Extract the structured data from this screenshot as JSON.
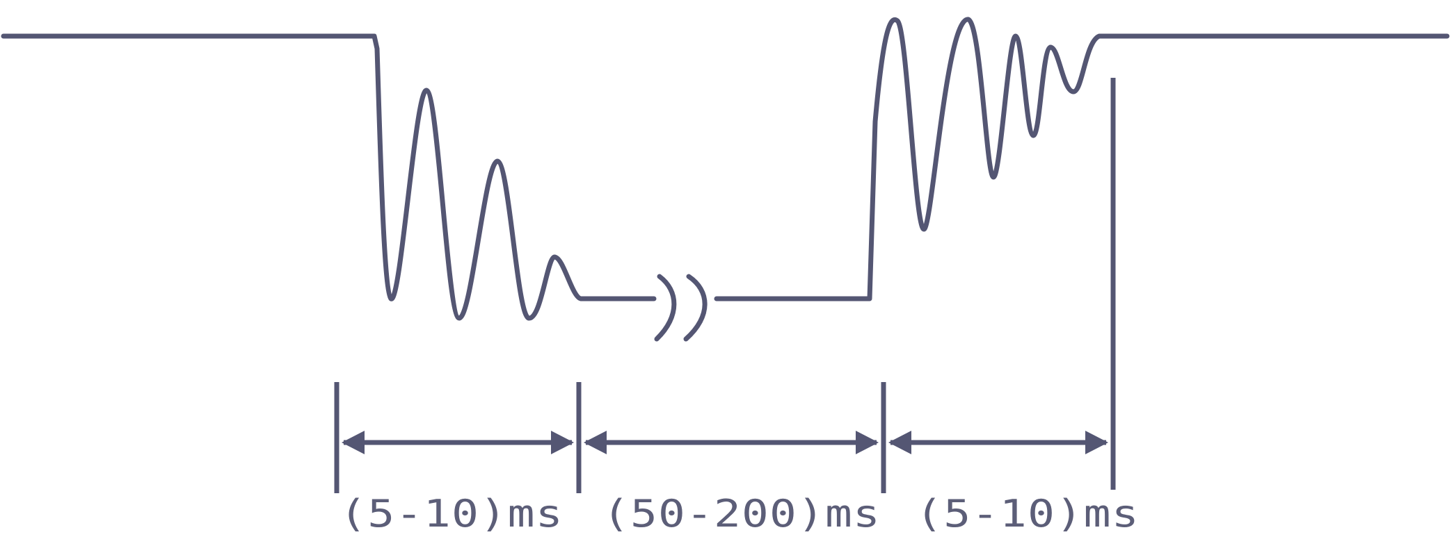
{
  "diagram": {
    "colors": {
      "stroke": "#545673",
      "label": "#5c5e78",
      "background": "#ffffff"
    },
    "segments": [
      {
        "label": "(5-10)ms"
      },
      {
        "label": "(50-200)ms"
      },
      {
        "label": "(5-10)ms"
      }
    ]
  }
}
